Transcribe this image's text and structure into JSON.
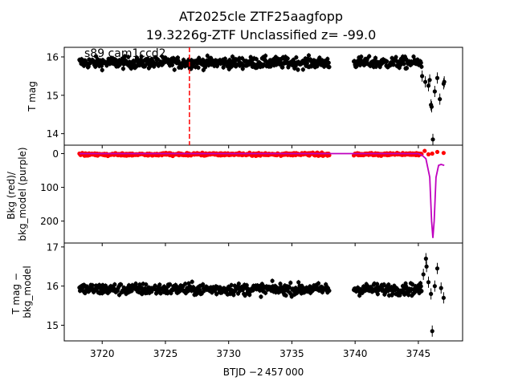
{
  "chart_data": {
    "type": "scatter",
    "title_line1": "AT2025cle  ZTF25aagfopp",
    "title_line2": "19.3226g-ZTF Unclassified z= -99.0",
    "xlabel": "BTJD −2 457 000",
    "xlim": [
      3717.0,
      3748.5
    ],
    "xticks": [
      3720,
      3725,
      3730,
      3735,
      3740,
      3745
    ],
    "xtick_labels": [
      "3720",
      "3725",
      "3730",
      "3735",
      "3740",
      "3745"
    ],
    "event_time": 3726.9,
    "annotation": "s89 cam1ccd2",
    "gap": [
      3738.0,
      3739.9
    ],
    "panels": [
      {
        "id": "top",
        "ylabel": "T mag",
        "ylim": [
          16.25,
          13.7
        ],
        "yticks": [
          14,
          15,
          16
        ],
        "ytick_labels": [
          "14",
          "15",
          "16"
        ],
        "series": [
          {
            "color": "#000000",
            "baseline": 15.85,
            "scatter": 0.14,
            "points": [
              [
                3745.3,
                15.5
              ],
              [
                3745.55,
                15.35
              ],
              [
                3745.8,
                15.25
              ],
              [
                3745.9,
                15.4
              ],
              [
                3746.0,
                14.75
              ],
              [
                3746.05,
                14.7
              ],
              [
                3746.15,
                13.85
              ],
              [
                3746.3,
                15.1
              ],
              [
                3746.5,
                15.45
              ],
              [
                3746.7,
                14.9
              ],
              [
                3747.0,
                15.3
              ],
              [
                3747.05,
                15.35
              ]
            ]
          }
        ]
      },
      {
        "id": "middle",
        "ylabel": "Bkg (red)/\nbkg_model (purple)",
        "ylim": [
          -25,
          265
        ],
        "yticks": [
          0,
          100,
          200
        ],
        "ytick_labels": [
          "0",
          "100",
          "200"
        ],
        "series": [
          {
            "name": "Bkg",
            "color": "#ff0000",
            "baseline": 2,
            "scatter": 4,
            "points": [
              [
                3745.5,
                -8
              ],
              [
                3745.8,
                2
              ],
              [
                3746.1,
                0
              ],
              [
                3746.5,
                -5
              ],
              [
                3747.0,
                -2
              ]
            ]
          },
          {
            "name": "bkg_model",
            "color": "#bf00bf",
            "line": [
              [
                3718.2,
                0
              ],
              [
                3738.0,
                0
              ],
              [
                3739.9,
                0
              ],
              [
                3745.0,
                0
              ],
              [
                3745.3,
                5
              ],
              [
                3745.6,
                15
              ],
              [
                3745.9,
                70
              ],
              [
                3746.05,
                200
              ],
              [
                3746.15,
                250
              ],
              [
                3746.25,
                200
              ],
              [
                3746.4,
                70
              ],
              [
                3746.6,
                35
              ],
              [
                3746.8,
                32
              ],
              [
                3747.05,
                35
              ]
            ]
          }
        ]
      },
      {
        "id": "bottom",
        "ylabel": "T mag −\nbkg_model",
        "ylim": [
          17.1,
          14.6
        ],
        "yticks": [
          15,
          16,
          17
        ],
        "ytick_labels": [
          "15",
          "16",
          "17"
        ],
        "series": [
          {
            "color": "#000000",
            "baseline": 15.92,
            "scatter": 0.14,
            "points": [
              [
                3745.4,
                16.3
              ],
              [
                3745.6,
                16.7
              ],
              [
                3745.65,
                16.5
              ],
              [
                3745.8,
                16.1
              ],
              [
                3746.0,
                15.8
              ],
              [
                3746.1,
                14.85
              ],
              [
                3746.3,
                16.0
              ],
              [
                3746.5,
                16.45
              ],
              [
                3746.8,
                15.95
              ],
              [
                3747.0,
                15.7
              ]
            ]
          }
        ]
      }
    ]
  }
}
